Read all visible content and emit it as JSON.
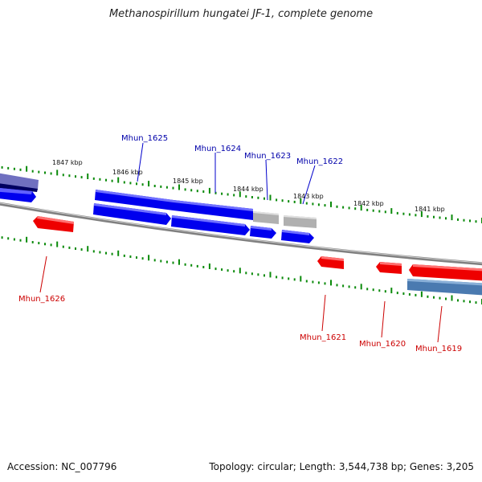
{
  "title": "Methanospirillum hungatei JF-1, complete genome",
  "accession": "Accession: NC_007796",
  "summary": "Topology: circular; Length: 3,544,738 bp; Genes: 3,205",
  "colors": {
    "forward": "#0000ee",
    "reverse": "#ee0000",
    "pseudo": "#b0b0b0",
    "ticks": "#0a8a0a",
    "backbone": "#888888",
    "label_forward": "#0000aa",
    "label_reverse": "#cc0000"
  },
  "tick_labels": [
    "1847 kbp",
    "1846 kbp",
    "1845 kbp",
    "1844 kbp",
    "1843 kbp",
    "1842 kbp",
    "1841 kbp"
  ],
  "genes_forward": [
    "Mhun_1625",
    "Mhun_1624",
    "Mhun_1623",
    "Mhun_1622"
  ],
  "genes_reverse": [
    "Mhun_1626",
    "Mhun_1621",
    "Mhun_1620",
    "Mhun_1619"
  ]
}
